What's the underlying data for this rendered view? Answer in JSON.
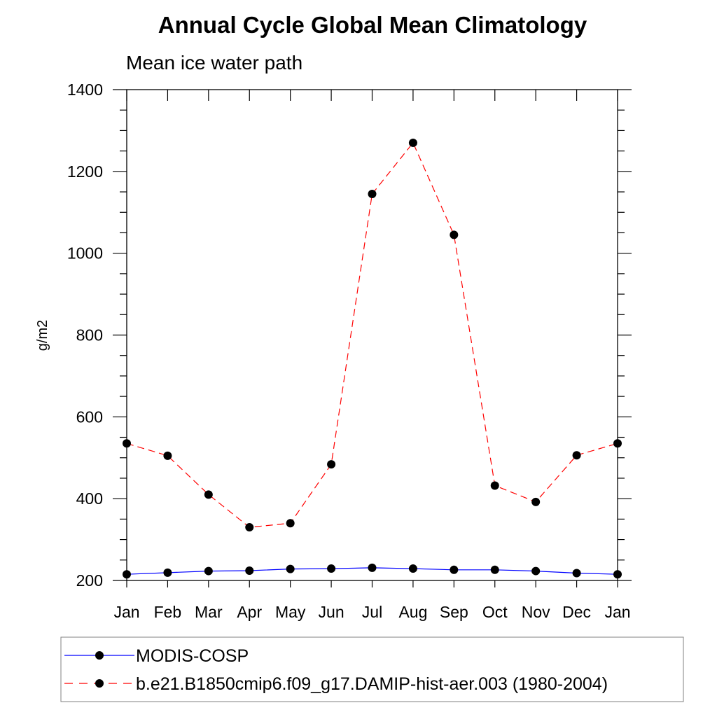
{
  "chart_data": {
    "type": "line",
    "title": "Annual Cycle Global Mean Climatology",
    "subtitle": "Mean ice water path",
    "xlabel": "",
    "ylabel": "g/m2",
    "categories": [
      "Jan",
      "Feb",
      "Mar",
      "Apr",
      "May",
      "Jun",
      "Jul",
      "Aug",
      "Sep",
      "Oct",
      "Nov",
      "Dec",
      "Jan"
    ],
    "ylim": [
      200,
      1400
    ],
    "yticks": [
      200,
      400,
      600,
      800,
      1000,
      1200,
      1400
    ],
    "yticks_label": [
      "200",
      "400",
      "600",
      "800",
      "1000",
      "1200",
      "1400"
    ],
    "legend_position": "bottom",
    "grid": false,
    "series": [
      {
        "name": "MODIS-COSP",
        "values": [
          215,
          219,
          223,
          224,
          228,
          229,
          231,
          229,
          226,
          226,
          223,
          218,
          215
        ],
        "color": "#0000ff",
        "line_style": "solid",
        "marker": "filled-circle"
      },
      {
        "name": "b.e21.B1850cmip6.f09_g17.DAMIP-hist-aer.003 (1980-2004)",
        "values": [
          535,
          505,
          410,
          330,
          340,
          484,
          1145,
          1270,
          1045,
          432,
          392,
          506,
          535
        ],
        "color": "#ff0000",
        "line_style": "dashed",
        "marker": "filled-circle"
      }
    ]
  }
}
